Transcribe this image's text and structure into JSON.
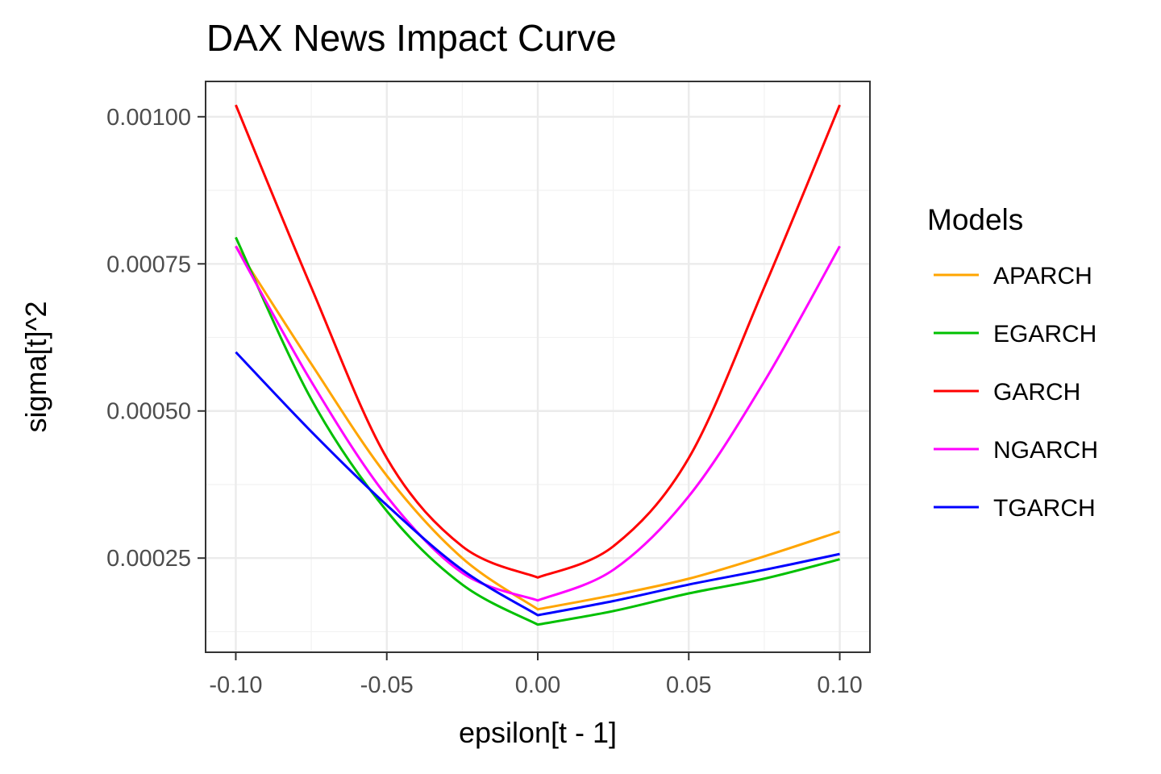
{
  "chart_data": {
    "type": "line",
    "title": "DAX News Impact Curve",
    "xlabel": "epsilon[t - 1]",
    "ylabel": "sigma[t]^2",
    "xlim": [
      -0.11,
      0.11
    ],
    "ylim": [
      9e-05,
      0.00106
    ],
    "xticks": [
      -0.1,
      -0.05,
      0.0,
      0.05,
      0.1
    ],
    "xtick_labels": [
      "-0.10",
      "-0.05",
      "0.00",
      "0.05",
      "0.10"
    ],
    "yticks": [
      0.00025,
      0.0005,
      0.00075,
      0.001
    ],
    "ytick_labels": [
      "0.00025",
      "0.00050",
      "0.00075",
      "0.00100"
    ],
    "grid": true,
    "legend": {
      "title": "Models",
      "placement": "right",
      "items": [
        "APARCH",
        "EGARCH",
        "GARCH",
        "NGARCH",
        "TGARCH"
      ]
    },
    "x": [
      -0.1,
      -0.075,
      -0.05,
      -0.025,
      0.0,
      0.025,
      0.05,
      0.075,
      0.1
    ],
    "series": [
      {
        "name": "APARCH",
        "color": "#FFA500",
        "values": [
          0.00078,
          0.00058,
          0.00039,
          0.00025,
          0.000163,
          0.000187,
          0.000215,
          0.000253,
          0.000295
        ]
      },
      {
        "name": "EGARCH",
        "color": "#00C000",
        "values": [
          0.000795,
          0.00052,
          0.00033,
          0.000205,
          0.000137,
          0.00016,
          0.00019,
          0.000215,
          0.000248
        ]
      },
      {
        "name": "GARCH",
        "color": "#FF0000",
        "values": [
          0.00102,
          0.00071,
          0.00042,
          0.00027,
          0.000217,
          0.00027,
          0.00042,
          0.00071,
          0.00102
        ]
      },
      {
        "name": "NGARCH",
        "color": "#FF00FF",
        "values": [
          0.00078,
          0.00055,
          0.000355,
          0.000225,
          0.000178,
          0.00023,
          0.000355,
          0.00055,
          0.00078
        ]
      },
      {
        "name": "TGARCH",
        "color": "#0000FF",
        "values": [
          0.0006,
          0.000465,
          0.00034,
          0.00023,
          0.000153,
          0.000177,
          0.000205,
          0.00023,
          0.000257
        ]
      }
    ]
  }
}
